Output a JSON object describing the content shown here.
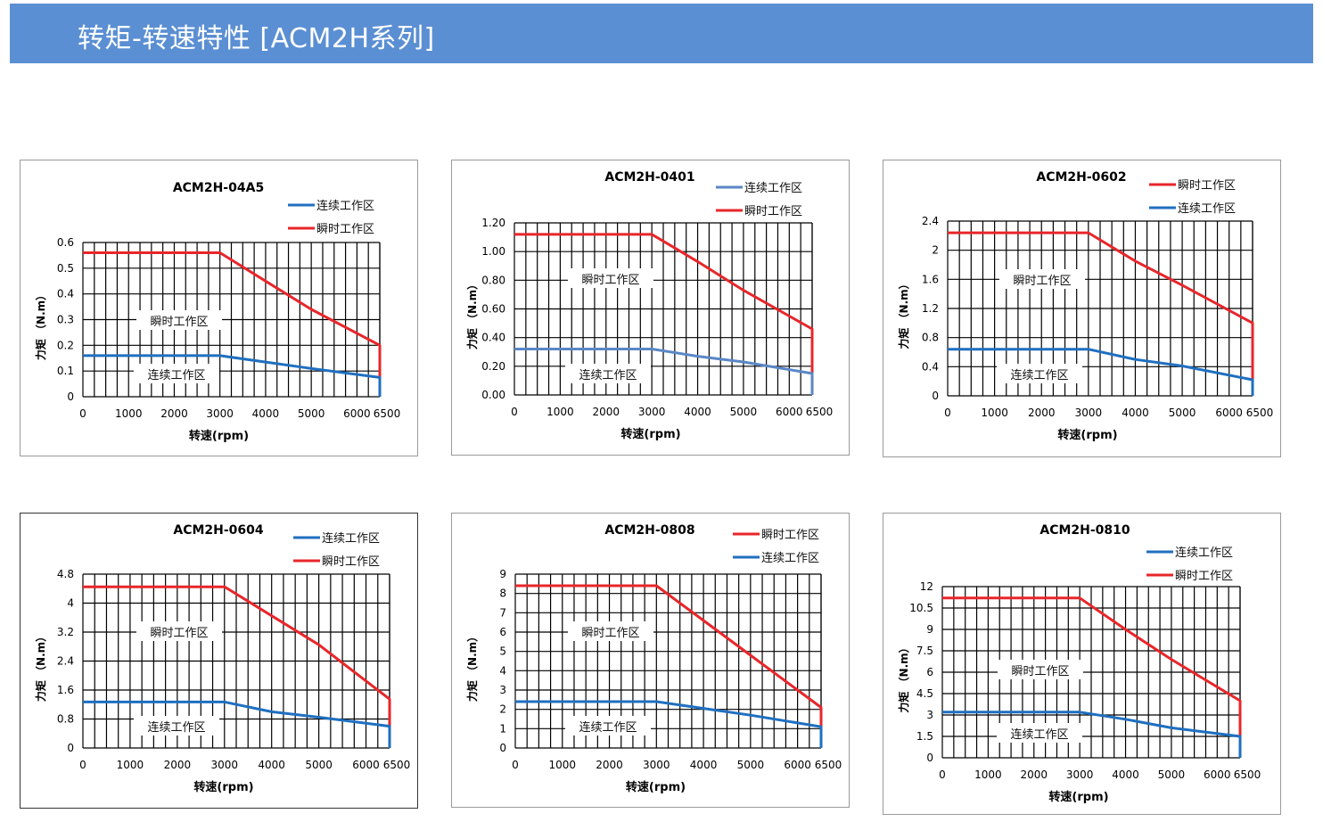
{
  "page": {
    "title": "转矩-转速特性 [ACM2H系列]",
    "header_color": "#5b8fd3"
  },
  "common": {
    "xlabel": "转速(rpm)",
    "ylabel": "力矩 （N.m）",
    "series_continuous": "连续工作区",
    "series_instant": "瞬时工作区",
    "color_continuous": "#1f6fc0",
    "color_continuous_light": "#5a87c6",
    "color_instant": "#e8262a",
    "x_ticks": [
      0,
      1000,
      2000,
      3000,
      4000,
      5000,
      6000,
      6500
    ],
    "x_tick_labels": [
      "0",
      "1000",
      "2000",
      "3000",
      "4000",
      "5000",
      "6000",
      "6500"
    ],
    "xlim": [
      0,
      6500
    ]
  },
  "chart_data": [
    {
      "type": "line",
      "title": "ACM2H-04A5",
      "xlabel": "转速(rpm)",
      "ylabel": "力矩 （N.m）",
      "legend_order": [
        "continuous",
        "instant"
      ],
      "legend_position": "top-right",
      "ylim": [
        0,
        0.6
      ],
      "y_ticks": [
        0,
        0.1,
        0.2,
        0.3,
        0.4,
        0.5,
        0.6
      ],
      "y_tick_labels": [
        "0",
        "0.1",
        "0.2",
        "0.3",
        "0.4",
        "0.5",
        "0.6"
      ],
      "series": [
        {
          "key": "instant",
          "name": "瞬时工作区",
          "color": "#e8262a",
          "x": [
            0,
            3000,
            4000,
            5000,
            6500,
            6500
          ],
          "y": [
            0.56,
            0.56,
            0.45,
            0.34,
            0.2,
            0.07
          ]
        },
        {
          "key": "continuous",
          "name": "连续工作区",
          "color": "#1f6fc0",
          "x": [
            0,
            3000,
            4000,
            5000,
            6500,
            6500
          ],
          "y": [
            0.16,
            0.16,
            0.135,
            0.11,
            0.075,
            0
          ]
        }
      ],
      "area_labels": {
        "instant": "瞬时工作区",
        "continuous": "连续工作区"
      }
    },
    {
      "type": "line",
      "title": "ACM2H-0401",
      "xlabel": "转速(rpm)",
      "ylabel": "力矩 （N.m）",
      "legend_order": [
        "continuous",
        "instant"
      ],
      "legend_position": "top-right",
      "ylim": [
        0,
        1.2
      ],
      "y_ticks": [
        0,
        0.2,
        0.4,
        0.6,
        0.8,
        1.0,
        1.2
      ],
      "y_tick_labels": [
        "0.00",
        "0.20",
        "0.40",
        "0.60",
        "0.80",
        "1.00",
        "1.20"
      ],
      "series": [
        {
          "key": "instant",
          "name": "瞬时工作区",
          "color": "#e8262a",
          "x": [
            0,
            3000,
            4000,
            5000,
            6500,
            6500
          ],
          "y": [
            1.12,
            1.12,
            0.93,
            0.73,
            0.46,
            0.15
          ]
        },
        {
          "key": "continuous",
          "name": "连续工作区",
          "color": "#5a87c6",
          "x": [
            0,
            3000,
            4000,
            5000,
            6500,
            6500
          ],
          "y": [
            0.32,
            0.32,
            0.27,
            0.23,
            0.15,
            0
          ]
        }
      ],
      "area_labels": {
        "instant": "瞬时工作区",
        "continuous": "连续工作区"
      }
    },
    {
      "type": "line",
      "title": "ACM2H-0602",
      "xlabel": "转速(rpm)",
      "ylabel": "力矩 （N.m）",
      "legend_order": [
        "instant",
        "continuous"
      ],
      "legend_position": "top-right",
      "ylim": [
        0,
        2.4
      ],
      "y_ticks": [
        0,
        0.4,
        0.8,
        1.2,
        1.6,
        2.0,
        2.4
      ],
      "y_tick_labels": [
        "0",
        "0.4",
        "0.8",
        "1.2",
        "1.6",
        "2",
        "2.4"
      ],
      "series": [
        {
          "key": "instant",
          "name": "瞬时工作区",
          "color": "#e8262a",
          "x": [
            0,
            3000,
            4000,
            5000,
            6500,
            6500
          ],
          "y": [
            2.24,
            2.24,
            1.85,
            1.52,
            1.0,
            0.22
          ]
        },
        {
          "key": "continuous",
          "name": "连续工作区",
          "color": "#1f6fc0",
          "x": [
            0,
            3000,
            4000,
            5000,
            6500,
            6500
          ],
          "y": [
            0.64,
            0.64,
            0.5,
            0.41,
            0.22,
            0
          ]
        }
      ],
      "area_labels": {
        "instant": "瞬时工作区",
        "continuous": "连续工作区"
      }
    },
    {
      "type": "line",
      "title": "ACM2H-0604",
      "xlabel": "转速(rpm)",
      "ylabel": "力矩 （N.m）",
      "legend_order": [
        "continuous",
        "instant"
      ],
      "legend_position": "top-right",
      "ylim": [
        0,
        4.8
      ],
      "y_ticks": [
        0,
        0.8,
        1.6,
        2.4,
        3.2,
        4.0,
        4.8
      ],
      "y_tick_labels": [
        "0",
        "0.8",
        "1.6",
        "2.4",
        "3.2",
        "4",
        "4.8"
      ],
      "series": [
        {
          "key": "instant",
          "name": "瞬时工作区",
          "color": "#e8262a",
          "x": [
            0,
            3000,
            4000,
            5000,
            6500,
            6500
          ],
          "y": [
            4.45,
            4.45,
            3.65,
            2.85,
            1.35,
            0.6
          ]
        },
        {
          "key": "continuous",
          "name": "连续工作区",
          "color": "#1f6fc0",
          "x": [
            0,
            3000,
            4000,
            5000,
            6500,
            6500
          ],
          "y": [
            1.27,
            1.27,
            1.0,
            0.85,
            0.6,
            0
          ]
        }
      ],
      "area_labels": {
        "instant": "瞬时工作区",
        "continuous": "连续工作区"
      }
    },
    {
      "type": "line",
      "title": "ACM2H-0808",
      "xlabel": "转速(rpm)",
      "ylabel": "力矩 （N.m）",
      "legend_order": [
        "instant",
        "continuous"
      ],
      "legend_position": "top-right",
      "ylim": [
        0,
        9
      ],
      "y_ticks": [
        0,
        1,
        2,
        3,
        4,
        5,
        6,
        7,
        8,
        9
      ],
      "y_tick_labels": [
        "0",
        "1",
        "2",
        "3",
        "4",
        "5",
        "6",
        "7",
        "8",
        "9"
      ],
      "series": [
        {
          "key": "instant",
          "name": "瞬时工作区",
          "color": "#e8262a",
          "x": [
            0,
            3000,
            4000,
            5000,
            6500,
            6500
          ],
          "y": [
            8.4,
            8.4,
            6.6,
            4.8,
            2.1,
            1.1
          ]
        },
        {
          "key": "continuous",
          "name": "连续工作区",
          "color": "#1f6fc0",
          "x": [
            0,
            3000,
            4000,
            5000,
            6500,
            6500
          ],
          "y": [
            2.4,
            2.4,
            2.05,
            1.7,
            1.1,
            0
          ]
        }
      ],
      "area_labels": {
        "instant": "瞬时工作区",
        "continuous": "连续工作区"
      }
    },
    {
      "type": "line",
      "title": "ACM2H-0810",
      "xlabel": "转速(rpm)",
      "ylabel": "力矩 （N.m）",
      "legend_order": [
        "continuous",
        "instant"
      ],
      "legend_position": "top-right",
      "ylim": [
        0,
        12
      ],
      "y_ticks": [
        0,
        1.5,
        3,
        4.5,
        6,
        7.5,
        9,
        10.5,
        12
      ],
      "y_tick_labels": [
        "0",
        "1.5",
        "3",
        "4.5",
        "6",
        "7.5",
        "9",
        "10.5",
        "12"
      ],
      "series": [
        {
          "key": "instant",
          "name": "瞬时工作区",
          "color": "#e8262a",
          "x": [
            0,
            3000,
            4000,
            5000,
            6500,
            6500
          ],
          "y": [
            11.2,
            11.2,
            9.0,
            6.9,
            4.0,
            1.5
          ]
        },
        {
          "key": "continuous",
          "name": "连续工作区",
          "color": "#1f6fc0",
          "x": [
            0,
            3000,
            4000,
            5000,
            6500,
            6500
          ],
          "y": [
            3.2,
            3.2,
            2.7,
            2.1,
            1.5,
            0
          ]
        }
      ],
      "area_labels": {
        "instant": "瞬时工作区",
        "continuous": "连续工作区"
      }
    }
  ]
}
